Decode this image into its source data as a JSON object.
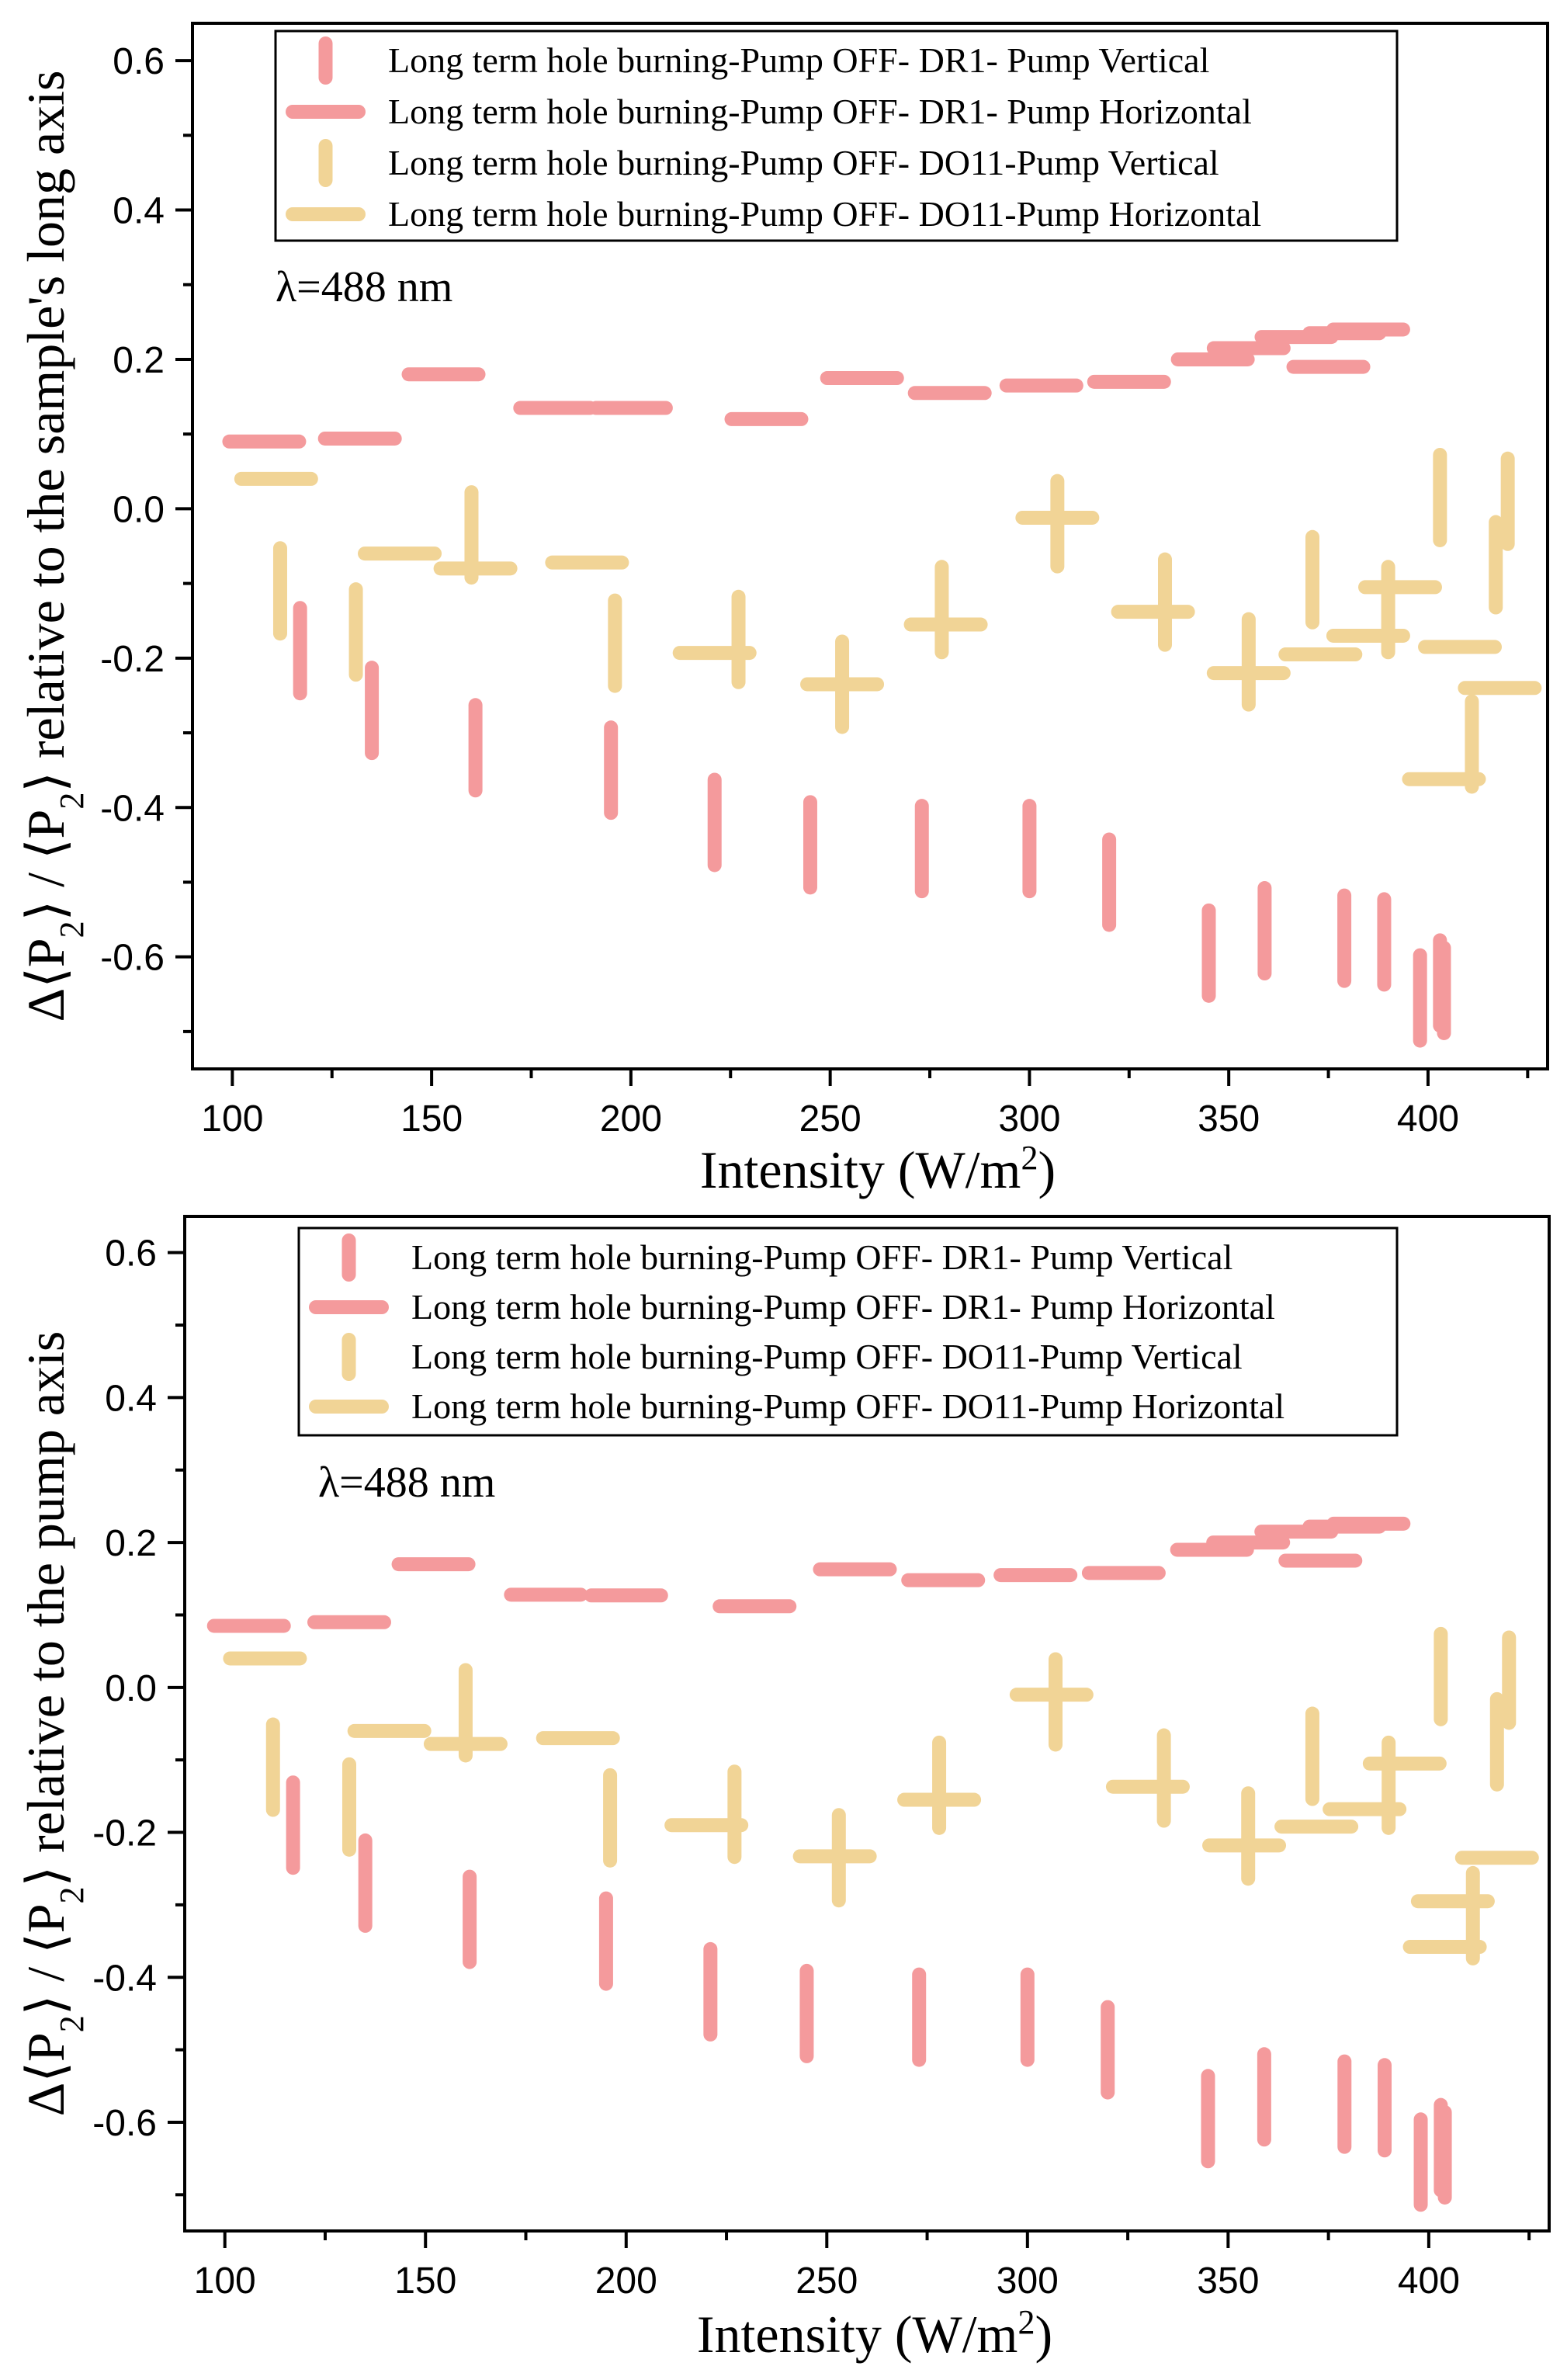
{
  "chart_data": [
    {
      "type": "scatter",
      "name": "top-panel",
      "ylabel": "Δ⟨P2⟩ / ⟨P2⟩ relative to the sample's long axis",
      "ylabel_parts": {
        "pre": "Δ⟨P",
        "sub": "2",
        "mid": "⟩ / ⟨P",
        "sub2": "2",
        "post": "⟩ relative to the sample's long axis"
      },
      "xlabel": "Intensity (W/m2)",
      "xlabel_parts": {
        "pre": "Intensity (W/m",
        "sup": "2",
        "post": ")"
      },
      "xlim": [
        90,
        430
      ],
      "ylim": [
        -0.75,
        0.65
      ],
      "xticks": [
        100,
        150,
        200,
        250,
        300,
        350,
        400
      ],
      "yticks": [
        0.6,
        0.4,
        0.2,
        0.0,
        -0.2,
        -0.4,
        -0.6
      ],
      "xtick_labels": [
        "100",
        "150",
        "200",
        "250",
        "300",
        "350",
        "400"
      ],
      "ytick_labels": [
        "0.6",
        "0.4",
        "0.2",
        "0.0",
        "-0.2",
        "-0.4",
        "-0.6"
      ],
      "annotation": "λ=488 nm",
      "legend_position": "top",
      "series": [
        {
          "name": "Long term hole burning-Pump OFF- DR1- Pump Vertical",
          "marker": "vertical",
          "color": "#f49a9c",
          "points": [
            [
              117,
              -0.19
            ],
            [
              135,
              -0.27
            ],
            [
              161,
              -0.32
            ],
            [
              195,
              -0.35
            ],
            [
              221,
              -0.42
            ],
            [
              245,
              -0.45
            ],
            [
              273,
              -0.455
            ],
            [
              300,
              -0.455
            ],
            [
              320,
              -0.5
            ],
            [
              345,
              -0.595
            ],
            [
              359,
              -0.565
            ],
            [
              379,
              -0.575
            ],
            [
              389,
              -0.58
            ],
            [
              398,
              -0.655
            ],
            [
              403,
              -0.635
            ],
            [
              404,
              -0.645
            ]
          ]
        },
        {
          "name": "Long term hole burning-Pump OFF- DR1- Pump Horizontal",
          "marker": "horizontal",
          "color": "#f49a9c",
          "points": [
            [
              108,
              0.09
            ],
            [
              132,
              0.094
            ],
            [
              153,
              0.18
            ],
            [
              181,
              0.135
            ],
            [
              200,
              0.135
            ],
            [
              234,
              0.12
            ],
            [
              258,
              0.175
            ],
            [
              280,
              0.155
            ],
            [
              303,
              0.165
            ],
            [
              325,
              0.17
            ],
            [
              346,
              0.2
            ],
            [
              355,
              0.215
            ],
            [
              367,
              0.23
            ],
            [
              375,
              0.19
            ],
            [
              379,
              0.235
            ],
            [
              385,
              0.24
            ]
          ]
        },
        {
          "name": "Long term hole burning-Pump OFF- DO11-Pump Vertical",
          "marker": "vertical",
          "color": "#f1d496",
          "points": [
            [
              112,
              -0.11
            ],
            [
              131,
              -0.165
            ],
            [
              160,
              -0.035
            ],
            [
              196,
              -0.18
            ],
            [
              227,
              -0.175
            ],
            [
              253,
              -0.235
            ],
            [
              278,
              -0.135
            ],
            [
              307,
              -0.02
            ],
            [
              334,
              -0.125
            ],
            [
              355,
              -0.205
            ],
            [
              371,
              -0.095
            ],
            [
              390,
              -0.135
            ],
            [
              403,
              0.015
            ],
            [
              411,
              -0.315
            ],
            [
              417,
              -0.075
            ],
            [
              420,
              0.01
            ]
          ]
        },
        {
          "name": "Long term hole burning-Pump OFF- DO11-Pump Horizontal",
          "marker": "horizontal",
          "color": "#f1d496",
          "points": [
            [
              111,
              0.04
            ],
            [
              142,
              -0.06
            ],
            [
              161,
              -0.08
            ],
            [
              189,
              -0.072
            ],
            [
              221,
              -0.193
            ],
            [
              253,
              -0.235
            ],
            [
              279,
              -0.155
            ],
            [
              307,
              -0.012
            ],
            [
              331,
              -0.138
            ],
            [
              355,
              -0.22
            ],
            [
              373,
              -0.195
            ],
            [
              385,
              -0.17
            ],
            [
              393,
              -0.105
            ],
            [
              408,
              -0.185
            ],
            [
              404,
              -0.362
            ],
            [
              418,
              -0.24
            ]
          ]
        }
      ]
    },
    {
      "type": "scatter",
      "name": "bottom-panel",
      "ylabel": "Δ⟨P2⟩ / ⟨P2⟩ relative to the pump axis",
      "ylabel_parts": {
        "pre": "Δ⟨P",
        "sub": "2",
        "mid": "⟩ / ⟨P",
        "sub2": "2",
        "post": "⟩ relative to the pump axis"
      },
      "xlabel": "Intensity (W/m2)",
      "xlabel_parts": {
        "pre": "Intensity (W/m",
        "sup": "2",
        "post": ")"
      },
      "xlim": [
        90,
        430
      ],
      "ylim": [
        -0.75,
        0.65
      ],
      "xticks": [
        100,
        150,
        200,
        250,
        300,
        350,
        400
      ],
      "yticks": [
        0.6,
        0.4,
        0.2,
        0.0,
        -0.2,
        -0.4,
        -0.6
      ],
      "xtick_labels": [
        "100",
        "150",
        "200",
        "250",
        "300",
        "350",
        "400"
      ],
      "ytick_labels": [
        "0.6",
        "0.4",
        "0.2",
        "0.0",
        "-0.2",
        "-0.4",
        "-0.6"
      ],
      "annotation": "λ=488 nm",
      "legend_position": "top",
      "series": [
        {
          "name": "Long term hole burning-Pump OFF- DR1- Pump Vertical",
          "marker": "vertical",
          "color": "#f49a9c",
          "points": [
            [
              117,
              -0.19
            ],
            [
              135,
              -0.27
            ],
            [
              161,
              -0.32
            ],
            [
              195,
              -0.35
            ],
            [
              221,
              -0.42
            ],
            [
              245,
              -0.45
            ],
            [
              273,
              -0.455
            ],
            [
              300,
              -0.455
            ],
            [
              320,
              -0.5
            ],
            [
              345,
              -0.595
            ],
            [
              359,
              -0.565
            ],
            [
              379,
              -0.575
            ],
            [
              389,
              -0.58
            ],
            [
              398,
              -0.655
            ],
            [
              403,
              -0.635
            ],
            [
              404,
              -0.645
            ]
          ]
        },
        {
          "name": "Long term hole burning-Pump OFF- DR1- Pump Horizontal",
          "marker": "horizontal",
          "color": "#f49a9c",
          "points": [
            [
              106,
              0.085
            ],
            [
              131,
              0.09
            ],
            [
              152,
              0.17
            ],
            [
              180,
              0.128
            ],
            [
              200,
              0.127
            ],
            [
              232,
              0.112
            ],
            [
              257,
              0.163
            ],
            [
              279,
              0.148
            ],
            [
              302,
              0.155
            ],
            [
              324,
              0.158
            ],
            [
              346,
              0.19
            ],
            [
              355,
              0.2
            ],
            [
              367,
              0.215
            ],
            [
              373,
              0.175
            ],
            [
              379,
              0.222
            ],
            [
              385,
              0.226
            ]
          ]
        },
        {
          "name": "Long term hole burning-Pump OFF- DO11-Pump Vertical",
          "marker": "vertical",
          "color": "#f1d496",
          "points": [
            [
              112,
              -0.11
            ],
            [
              131,
              -0.165
            ],
            [
              160,
              -0.035
            ],
            [
              196,
              -0.18
            ],
            [
              227,
              -0.175
            ],
            [
              253,
              -0.235
            ],
            [
              278,
              -0.135
            ],
            [
              307,
              -0.02
            ],
            [
              334,
              -0.125
            ],
            [
              355,
              -0.205
            ],
            [
              371,
              -0.095
            ],
            [
              390,
              -0.135
            ],
            [
              403,
              0.015
            ],
            [
              411,
              -0.315
            ],
            [
              417,
              -0.075
            ],
            [
              420,
              0.01
            ]
          ]
        },
        {
          "name": "Long term hole burning-Pump OFF- DO11-Pump Horizontal",
          "marker": "horizontal",
          "color": "#f1d496",
          "points": [
            [
              110,
              0.04
            ],
            [
              141,
              -0.06
            ],
            [
              160,
              -0.078
            ],
            [
              188,
              -0.07
            ],
            [
              220,
              -0.19
            ],
            [
              252,
              -0.233
            ],
            [
              278,
              -0.155
            ],
            [
              306,
              -0.01
            ],
            [
              330,
              -0.137
            ],
            [
              354,
              -0.218
            ],
            [
              372,
              -0.192
            ],
            [
              384,
              -0.168
            ],
            [
              394,
              -0.105
            ],
            [
              406,
              -0.295
            ],
            [
              404,
              -0.358
            ],
            [
              417,
              -0.235
            ]
          ]
        }
      ]
    }
  ]
}
